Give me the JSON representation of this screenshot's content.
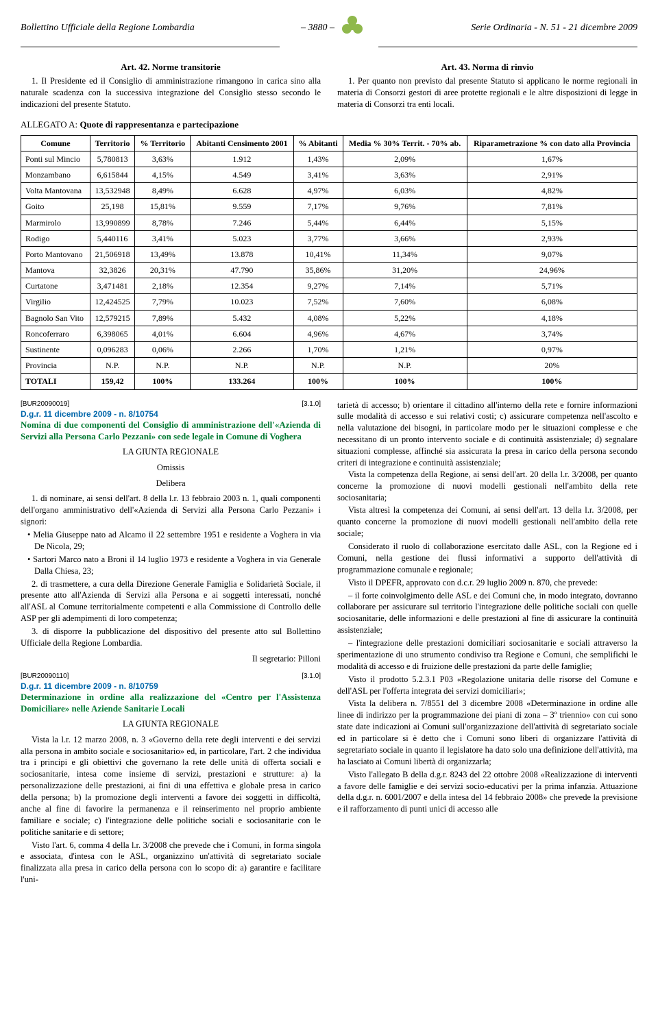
{
  "header": {
    "publication": "Bollettino Ufficiale della Regione Lombardia",
    "page_number": "– 3880 –",
    "series": "Serie Ordinaria - N. 51 - 21 dicembre 2009",
    "logo_color": "#8fb84c"
  },
  "articles": {
    "art42_title": "Art. 42. Norme transitorie",
    "art42_body": "1. Il Presidente ed il Consiglio di amministrazione rimangono in carica sino alla naturale scadenza con la successiva integrazione del Consiglio stesso secondo le indicazioni del presente Statuto.",
    "art43_title": "Art. 43. Norma di rinvio",
    "art43_body": "1. Per quanto non previsto dal presente Statuto si applicano le norme regionali in materia di Consorzi gestori di aree protette regionali e le altre disposizioni di legge in materia di Consorzi tra enti locali."
  },
  "allegato": {
    "intro_plain": "ALLEGATO A: ",
    "intro_bold": "Quote di rappresentanza e partecipazione",
    "columns": [
      "Comune",
      "Territorio",
      "% Territorio",
      "Abitanti Censimento 2001",
      "% Abitanti",
      "Media % 30% Territ. - 70% ab.",
      "Riparametrazione % con dato alla Provincia"
    ],
    "rows": [
      [
        "Ponti sul Mincio",
        "5,780813",
        "3,63%",
        "1.912",
        "1,43%",
        "2,09%",
        "1,67%"
      ],
      [
        "Monzambano",
        "6,615844",
        "4,15%",
        "4.549",
        "3,41%",
        "3,63%",
        "2,91%"
      ],
      [
        "Volta Mantovana",
        "13,532948",
        "8,49%",
        "6.628",
        "4,97%",
        "6,03%",
        "4,82%"
      ],
      [
        "Goito",
        "25,198",
        "15,81%",
        "9.559",
        "7,17%",
        "9,76%",
        "7,81%"
      ],
      [
        "Marmirolo",
        "13,990899",
        "8,78%",
        "7.246",
        "5,44%",
        "6,44%",
        "5,15%"
      ],
      [
        "Rodigo",
        "5,440116",
        "3,41%",
        "5.023",
        "3,77%",
        "3,66%",
        "2,93%"
      ],
      [
        "Porto Mantovano",
        "21,506918",
        "13,49%",
        "13.878",
        "10,41%",
        "11,34%",
        "9,07%"
      ],
      [
        "Mantova",
        "32,3826",
        "20,31%",
        "47.790",
        "35,86%",
        "31,20%",
        "24,96%"
      ],
      [
        "Curtatone",
        "3,471481",
        "2,18%",
        "12.354",
        "9,27%",
        "7,14%",
        "5,71%"
      ],
      [
        "Virgilio",
        "12,424525",
        "7,79%",
        "10.023",
        "7,52%",
        "7,60%",
        "6,08%"
      ],
      [
        "Bagnolo San Vito",
        "12,579215",
        "7,89%",
        "5.432",
        "4,08%",
        "5,22%",
        "4,18%"
      ],
      [
        "Roncoferraro",
        "6,398065",
        "4,01%",
        "6.604",
        "4,96%",
        "4,67%",
        "3,74%"
      ],
      [
        "Sustinente",
        "0,096283",
        "0,06%",
        "2.266",
        "1,70%",
        "1,21%",
        "0,97%"
      ],
      [
        "Provincia",
        "N.P.",
        "N.P.",
        "N.P.",
        "N.P.",
        "N.P.",
        "20%"
      ]
    ],
    "totali": [
      "TOTALI",
      "159,42",
      "100%",
      "133.264",
      "100%",
      "100%",
      "100%"
    ]
  },
  "decree1": {
    "bur": "[BUR20090019]",
    "code_right": "[3.1.0]",
    "ref": "D.g.r. 11 dicembre 2009 - n. 8/10754",
    "title": "Nomina di due componenti del Consiglio di amministrazione dell'«Azienda di Servizi alla Persona Carlo Pezzani» con sede legale in Comune di Voghera",
    "giunta": "LA GIUNTA REGIONALE",
    "omissis": "Omissis",
    "delibera": "Delibera",
    "p1": "1. di nominare, ai sensi dell'art. 8 della l.r. 13 febbraio 2003 n. 1, quali componenti dell'organo amministrativo dell'«Azienda di Servizi alla Persona Carlo Pezzani» i signori:",
    "b1": "• Melia Giuseppe nato ad Alcamo il 22 settembre 1951 e residente a Voghera in via De Nicola, 29;",
    "b2": "• Sartori Marco nato a Broni il 14 luglio 1973 e residente a Voghera in via Generale Dalla Chiesa, 23;",
    "p2": "2. di trasmettere, a cura della Direzione Generale Famiglia e Solidarietà Sociale, il presente atto all'Azienda di Servizi alla Persona e ai soggetti interessati, nonché all'ASL al Comune territorialmente competenti e alla Commissione di Controllo delle ASP per gli adempimenti di loro competenza;",
    "p3": "3. di disporre la pubblicazione del dispositivo del presente atto sul Bollettino Ufficiale della Regione Lombardia.",
    "signature": "Il segretario: Pilloni"
  },
  "decree2": {
    "bur": "[BUR20090110]",
    "code_right": "[3.1.0]",
    "ref": "D.g.r. 11 dicembre 2009 - n. 8/10759",
    "title": "Determinazione in ordine alla realizzazione del «Centro per l'Assistenza Domiciliare» nelle Aziende Sanitarie Locali",
    "giunta": "LA GIUNTA REGIONALE",
    "p1": "Vista la l.r. 12 marzo 2008, n. 3 «Governo della rete degli interventi e dei servizi alla persona in ambito sociale e sociosanitario» ed, in particolare, l'art. 2 che individua tra i principi e gli obiettivi che governano la rete delle unità di offerta sociali e sociosanitarie, intesa come insieme di servizi, prestazioni e strutture: a) la personalizzazione delle prestazioni, ai fini di una effettiva e globale presa in carico della persona; b) la promozione degli interventi a favore dei soggetti in difficoltà, anche al fine di favorire la permanenza e il reinserimento nel proprio ambiente familiare e sociale; c) l'integrazione delle politiche sociali e sociosanitarie con le politiche sanitarie e di settore;",
    "p2": "Visto l'art. 6, comma 4 della l.r. 3/2008 che prevede che i Comuni, in forma singola e associata, d'intesa con le ASL, organizzino un'attività di segretariato sociale finalizzata alla presa in carico della persona con lo scopo di: a) garantire e facilitare l'uni-"
  },
  "rightcol": {
    "r1": "tarietà di accesso; b) orientare il cittadino all'interno della rete e fornire informazioni sulle modalità di accesso e sui relativi costi; c) assicurare competenza nell'ascolto e nella valutazione dei bisogni, in particolare modo per le situazioni complesse e che necessitano di un pronto intervento sociale e di continuità assistenziale; d) segnalare situazioni complesse, affinché sia assicurata la presa in carico della persona secondo criteri di integrazione e continuità assistenziale;",
    "r2": "Vista la competenza della Regione, ai sensi dell'art. 20 della l.r. 3/2008, per quanto concerne la promozione di nuovi modelli gestionali nell'ambito della rete sociosanitaria;",
    "r3": "Vista altresì la competenza dei Comuni, ai sensi dell'art. 13 della l.r. 3/2008, per quanto concerne la promozione di nuovi modelli gestionali nell'ambito della rete sociale;",
    "r4": "Considerato il ruolo di collaborazione esercitato dalle ASL, con la Regione ed i Comuni, nella gestione dei flussi informativi a supporto dell'attività di programmazione comunale e regionale;",
    "r5": "Visto il DPEFR, approvato con d.c.r. 29 luglio 2009 n. 870, che prevede:",
    "r6": "– il forte coinvolgimento delle ASL e dei Comuni che, in modo integrato, dovranno collaborare per assicurare sul territorio l'integrazione delle politiche sociali con quelle sociosanitarie, delle informazioni e delle prestazioni al fine di assicurare la continuità assistenziale;",
    "r7": "– l'integrazione delle prestazioni domiciliari sociosanitarie e sociali attraverso la sperimentazione di uno strumento condiviso tra Regione e Comuni, che semplifichi le modalità di accesso e di fruizione delle prestazioni da parte delle famiglie;",
    "r8": "Visto il prodotto 5.2.3.1 P03 «Regolazione unitaria delle risorse del Comune e dell'ASL per l'offerta integrata dei servizi domiciliari»;",
    "r9": "Vista la delibera n. 7/8551 del 3 dicembre 2008 «Determinazione in ordine alle linee di indirizzo per la programmazione dei piani di zona – 3º triennio» con cui sono state date indicazioni ai Comuni sull'organizzazione dell'attività di segretariato sociale ed in particolare si è detto che i Comuni sono liberi di organizzare l'attività di segretariato sociale in quanto il legislatore ha dato solo una definizione dell'attività, ma ha lasciato ai Comuni libertà di organizzarla;",
    "r10": "Visto l'allegato B della d.g.r. 8243 del 22 ottobre 2008 «Realizzazione di interventi a favore delle famiglie e dei servizi socio-educativi per la prima infanzia. Attuazione della d.g.r. n. 6001/2007 e della intesa del 14 febbraio 2008» che prevede la previsione e il rafforzamento di punti unici di accesso alle"
  }
}
